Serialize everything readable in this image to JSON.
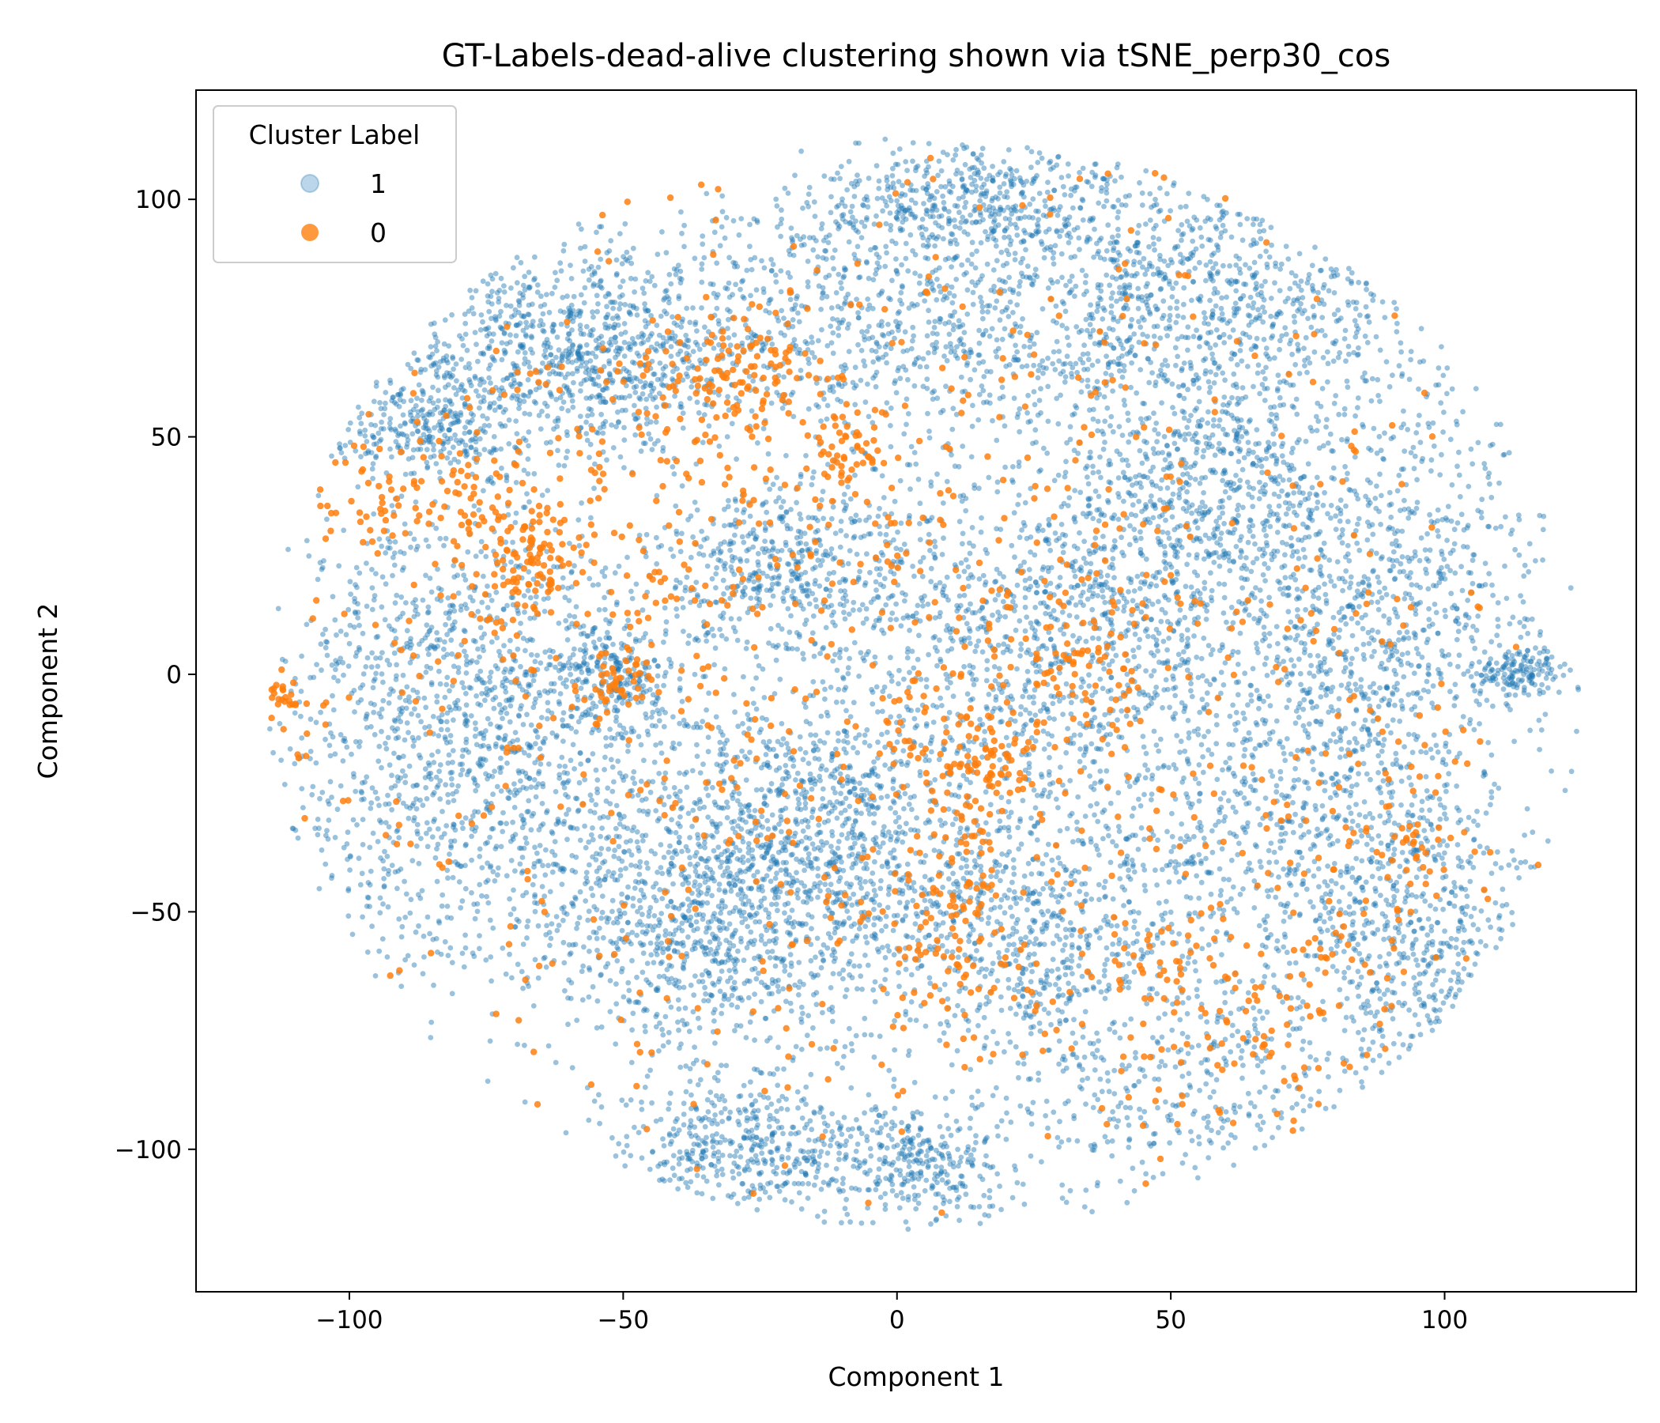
{
  "chart_data": {
    "type": "scatter",
    "title": "GT-Labels-dead-alive clustering shown via tSNE_perp30_cos",
    "xlabel": "Component 1",
    "ylabel": "Component 2",
    "xlim": [
      -128,
      135
    ],
    "ylim": [
      -130,
      123
    ],
    "xticks": [
      -100,
      -50,
      0,
      50,
      100
    ],
    "yticks": [
      -100,
      -50,
      0,
      50,
      100
    ],
    "xtick_labels": [
      "−100",
      "−50",
      "0",
      "50",
      "100"
    ],
    "ytick_labels": [
      "−100",
      "−50",
      "0",
      "50",
      "100"
    ],
    "grid": false,
    "legend": {
      "title": "Cluster Label",
      "position": "top-left",
      "entries": [
        {
          "label": "1",
          "color": "#1f77b4",
          "alpha": 0.3
        },
        {
          "label": "0",
          "color": "#ff7f0e",
          "alpha": 0.8
        }
      ]
    },
    "series": [
      {
        "name": "1",
        "color": "#1f77b4",
        "clusters": [
          {
            "cx": -20,
            "cy": 22,
            "sx": 12,
            "sy": 9,
            "n": 500
          },
          {
            "cx": -52,
            "cy": 0,
            "sx": 6,
            "sy": 6,
            "n": 250
          },
          {
            "cx": -85,
            "cy": 52,
            "sx": 10,
            "sy": 5,
            "n": 250
          },
          {
            "cx": -28,
            "cy": -100,
            "sx": 12,
            "sy": 8,
            "n": 450
          },
          {
            "cx": 5,
            "cy": -103,
            "sx": 8,
            "sy": 7,
            "n": 300
          },
          {
            "cx": 25,
            "cy": -55,
            "sx": 14,
            "sy": 14,
            "n": 600
          },
          {
            "cx": 55,
            "cy": 40,
            "sx": 14,
            "sy": 14,
            "n": 700
          },
          {
            "cx": 114,
            "cy": 0,
            "sx": 4,
            "sy": 3,
            "n": 150
          },
          {
            "cx": -50,
            "cy": 68,
            "sx": 12,
            "sy": 10,
            "n": 500
          },
          {
            "cx": 15,
            "cy": 100,
            "sx": 15,
            "sy": 7,
            "n": 450
          },
          {
            "cx": -80,
            "cy": -10,
            "sx": 18,
            "sy": 25,
            "n": 1400
          },
          {
            "cx": -35,
            "cy": -50,
            "sx": 18,
            "sy": 16,
            "n": 1200
          },
          {
            "cx": 70,
            "cy": -30,
            "sx": 20,
            "sy": 25,
            "n": 1000
          },
          {
            "cx": -5,
            "cy": 75,
            "sx": 25,
            "sy": 15,
            "n": 900
          },
          {
            "cx": 55,
            "cy": 80,
            "sx": 22,
            "sy": 12,
            "n": 800
          },
          {
            "cx": 90,
            "cy": 20,
            "sx": 14,
            "sy": 25,
            "n": 800
          },
          {
            "cx": -10,
            "cy": -30,
            "sx": 18,
            "sy": 18,
            "n": 900
          },
          {
            "cx": 30,
            "cy": 10,
            "sx": 20,
            "sy": 18,
            "n": 1000
          },
          {
            "cx": -75,
            "cy": 70,
            "sx": 15,
            "sy": 12,
            "n": 400
          },
          {
            "cx": 50,
            "cy": -90,
            "sx": 18,
            "sy": 12,
            "n": 300
          },
          {
            "cx": 95,
            "cy": -55,
            "sx": 10,
            "sy": 18,
            "n": 400
          }
        ]
      },
      {
        "name": "0",
        "color": "#ff7f0e",
        "clusters": [
          {
            "cx": -68,
            "cy": 25,
            "sx": 5,
            "sy": 6,
            "n": 90
          },
          {
            "cx": -10,
            "cy": 46,
            "sx": 4,
            "sy": 3,
            "n": 40
          },
          {
            "cx": 12,
            "cy": -18,
            "sx": 6,
            "sy": 4,
            "n": 70
          },
          {
            "cx": 10,
            "cy": -50,
            "sx": 6,
            "sy": 12,
            "n": 90
          },
          {
            "cx": 35,
            "cy": 5,
            "sx": 8,
            "sy": 8,
            "n": 60
          },
          {
            "cx": -30,
            "cy": 62,
            "sx": 12,
            "sy": 6,
            "n": 120
          },
          {
            "cx": -90,
            "cy": 35,
            "sx": 10,
            "sy": 6,
            "n": 60
          },
          {
            "cx": -60,
            "cy": 30,
            "sx": 20,
            "sy": 20,
            "n": 120
          },
          {
            "cx": 60,
            "cy": -70,
            "sx": 15,
            "sy": 12,
            "n": 120
          },
          {
            "cx": 0,
            "cy": 0,
            "sx": 55,
            "sy": 55,
            "n": 850
          },
          {
            "cx": -112,
            "cy": -5,
            "sx": 3,
            "sy": 2,
            "n": 25
          },
          {
            "cx": 90,
            "cy": -35,
            "sx": 8,
            "sy": 20,
            "n": 80
          },
          {
            "cx": -50,
            "cy": 0,
            "sx": 4,
            "sy": 5,
            "n": 40
          }
        ]
      }
    ]
  }
}
